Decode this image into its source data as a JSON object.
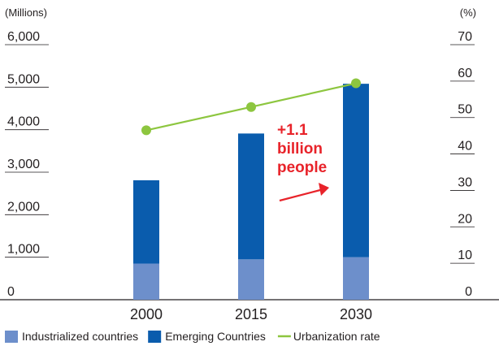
{
  "chart_data": {
    "type": "bar",
    "categories": [
      "2000",
      "2015",
      "2030"
    ],
    "series": [
      {
        "name": "Industrialized countries",
        "type": "bar",
        "axis": "left",
        "color": "#6d8fcb",
        "values": [
          850,
          950,
          1000
        ]
      },
      {
        "name": "Emerging Countries",
        "type": "bar",
        "axis": "left",
        "color": "#0a5cad",
        "values": [
          1960,
          2960,
          4080
        ]
      },
      {
        "name": "Urbanization rate",
        "type": "line",
        "axis": "right",
        "color": "#8dc63f",
        "values": [
          46.5,
          52.9,
          59.4
        ]
      }
    ],
    "left_axis": {
      "unit": "(Millions)",
      "ylim": [
        0,
        6000
      ],
      "ticks": [
        "0",
        "1,000",
        "2,000",
        "3,000",
        "4,000",
        "5,000",
        "6,000"
      ]
    },
    "right_axis": {
      "unit": "(%)",
      "ylim": [
        0,
        70
      ],
      "ticks": [
        "0",
        "10",
        "20",
        "30",
        "40",
        "50",
        "60",
        "70"
      ]
    },
    "annotation": {
      "lines": [
        "+1.1",
        "billion",
        "people"
      ],
      "color": "#e8232a"
    },
    "stacked": true,
    "grid": false,
    "legend_position": "bottom"
  }
}
